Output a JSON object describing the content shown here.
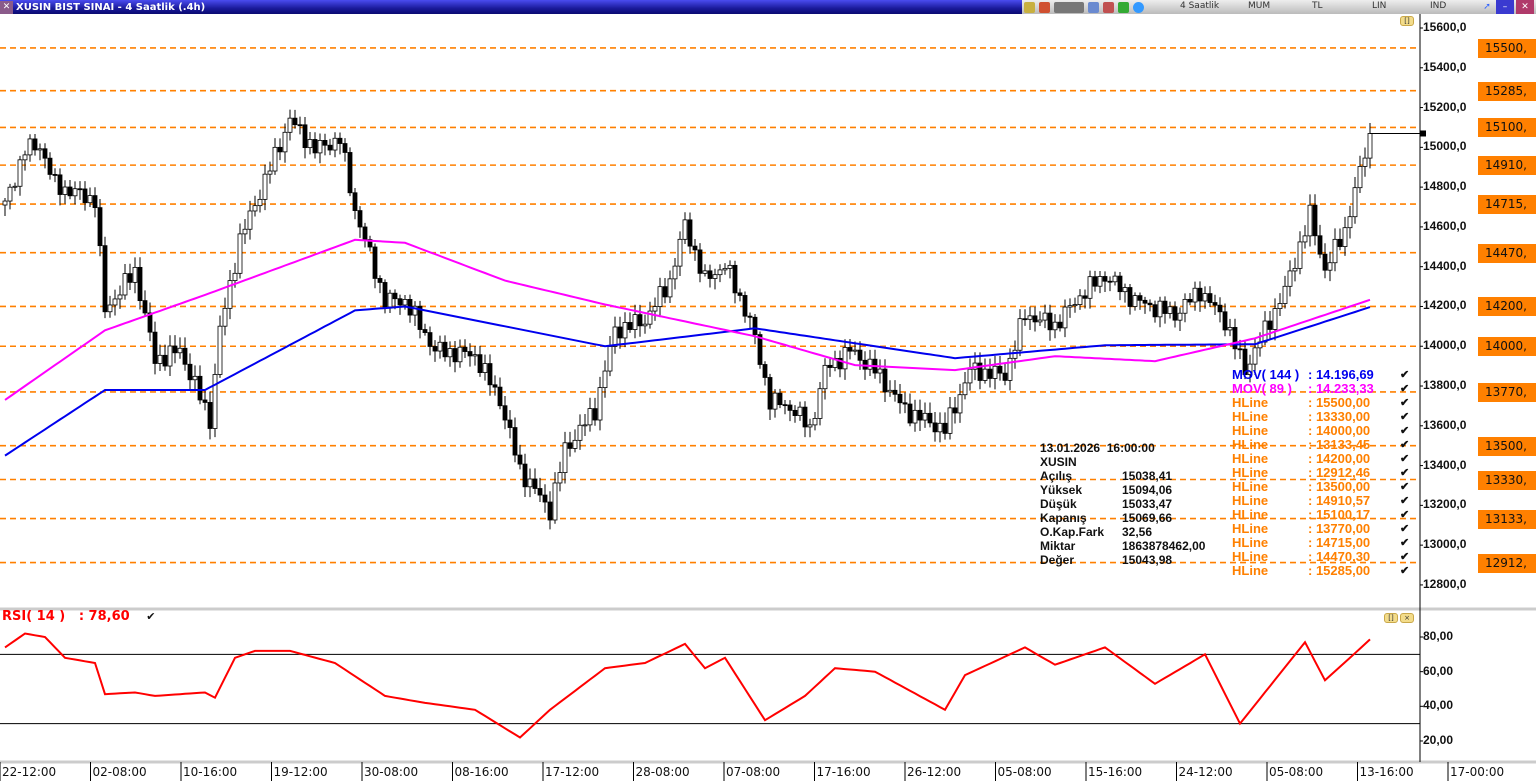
{
  "window": {
    "title": "XUSIN BIST SINAI - 4 Saatlik (.4h)",
    "toolbar": {
      "period": "4 Saatlik",
      "chart_type": "MUM",
      "currency": "TL",
      "scale": "LIN",
      "indicator": "IND"
    }
  },
  "price_axis": {
    "min": 12800,
    "max": 15600,
    "ticks": [
      "15600,0",
      "15400,0",
      "15200,0",
      "15000,0",
      "14800,0",
      "14600,0",
      "14400,0",
      "14200,0",
      "14000,0",
      "13800,0",
      "13600,0",
      "13400,0",
      "13200,0",
      "13000,0",
      "12800,0"
    ],
    "tick_values": [
      15600,
      15400,
      15200,
      15000,
      14800,
      14600,
      14400,
      14200,
      14000,
      13800,
      13600,
      13400,
      13200,
      13000,
      12800
    ]
  },
  "hlines": [
    {
      "value": 15500,
      "label": "15500,"
    },
    {
      "value": 15285,
      "label": "15285,"
    },
    {
      "value": 15100.17,
      "label": "15100,"
    },
    {
      "value": 14910.57,
      "label": "14910,"
    },
    {
      "value": 14715,
      "label": "14715,"
    },
    {
      "value": 14470.3,
      "label": "14470,"
    },
    {
      "value": 14200,
      "label": "14200,"
    },
    {
      "value": 14000,
      "label": "14000,"
    },
    {
      "value": 13770,
      "label": "13770,"
    },
    {
      "value": 13500,
      "label": "13500,"
    },
    {
      "value": 13330,
      "label": "13330,"
    },
    {
      "value": 13133.45,
      "label": "13133,"
    },
    {
      "value": 12912.46,
      "label": "12912,"
    }
  ],
  "colors": {
    "hline": "#ff8000",
    "mov144": "#0000ee",
    "mov89": "#ff00ff",
    "rsi": "#ff0000",
    "up": "#ffffff",
    "down": "#000000"
  },
  "price_path": [
    [
      0,
      14710
    ],
    [
      4,
      14987
    ],
    [
      7,
      15010
    ],
    [
      10,
      14810
    ],
    [
      18,
      14735
    ],
    [
      20,
      14180
    ],
    [
      26,
      14380
    ],
    [
      30,
      13930
    ],
    [
      35,
      13980
    ],
    [
      41,
      13630
    ],
    [
      43,
      14080
    ],
    [
      47,
      14535
    ],
    [
      52,
      14835
    ],
    [
      57,
      15140
    ],
    [
      62,
      14990
    ],
    [
      67,
      15040
    ],
    [
      70,
      14685
    ],
    [
      76,
      14230
    ],
    [
      80,
      14230
    ],
    [
      86,
      13980
    ],
    [
      94,
      13955
    ],
    [
      99,
      13730
    ],
    [
      103,
      13380
    ],
    [
      109,
      13175
    ],
    [
      112,
      13480
    ],
    [
      118,
      13680
    ],
    [
      122,
      14080
    ],
    [
      128,
      14130
    ],
    [
      133,
      14330
    ],
    [
      136,
      14610
    ],
    [
      140,
      14330
    ],
    [
      144,
      14410
    ],
    [
      149,
      14130
    ],
    [
      153,
      13730
    ],
    [
      158,
      13680
    ],
    [
      161,
      13580
    ],
    [
      164,
      13880
    ],
    [
      169,
      13980
    ],
    [
      174,
      13880
    ],
    [
      180,
      13680
    ],
    [
      188,
      13580
    ],
    [
      193,
      13880
    ],
    [
      200,
      13855
    ],
    [
      204,
      14160
    ],
    [
      210,
      14105
    ],
    [
      216,
      14280
    ],
    [
      220,
      14355
    ],
    [
      226,
      14230
    ],
    [
      234,
      14160
    ],
    [
      239,
      14280
    ],
    [
      244,
      14130
    ],
    [
      248,
      13880
    ],
    [
      251,
      14030
    ],
    [
      256,
      14280
    ],
    [
      261,
      14660
    ],
    [
      264,
      14385
    ],
    [
      268,
      14585
    ],
    [
      273,
      15069.66
    ]
  ],
  "mov144_path": [
    [
      0,
      13450
    ],
    [
      20,
      13780
    ],
    [
      40,
      13780
    ],
    [
      70,
      14180
    ],
    [
      80,
      14200
    ],
    [
      120,
      14000
    ],
    [
      150,
      14090
    ],
    [
      190,
      13940
    ],
    [
      220,
      14005
    ],
    [
      250,
      14010
    ],
    [
      273,
      14196.69
    ]
  ],
  "mov89_path": [
    [
      0,
      13730
    ],
    [
      20,
      14080
    ],
    [
      40,
      14258
    ],
    [
      70,
      14535
    ],
    [
      80,
      14520
    ],
    [
      100,
      14330
    ],
    [
      120,
      14210
    ],
    [
      150,
      14050
    ],
    [
      170,
      13905
    ],
    [
      190,
      13880
    ],
    [
      210,
      13950
    ],
    [
      230,
      13925
    ],
    [
      250,
      14040
    ],
    [
      273,
      14233.33
    ]
  ],
  "rsi_path": [
    [
      0,
      74
    ],
    [
      4,
      82
    ],
    [
      8,
      80
    ],
    [
      12,
      68
    ],
    [
      18,
      65
    ],
    [
      20,
      47
    ],
    [
      26,
      48
    ],
    [
      30,
      46
    ],
    [
      40,
      48
    ],
    [
      42,
      45
    ],
    [
      46,
      68
    ],
    [
      50,
      72
    ],
    [
      57,
      72
    ],
    [
      66,
      65
    ],
    [
      76,
      46
    ],
    [
      84,
      42
    ],
    [
      94,
      38
    ],
    [
      103,
      22
    ],
    [
      109,
      38
    ],
    [
      120,
      62
    ],
    [
      128,
      65
    ],
    [
      136,
      76
    ],
    [
      140,
      62
    ],
    [
      144,
      68
    ],
    [
      152,
      32
    ],
    [
      160,
      46
    ],
    [
      166,
      62
    ],
    [
      174,
      60
    ],
    [
      188,
      38
    ],
    [
      192,
      58
    ],
    [
      204,
      74
    ],
    [
      210,
      64
    ],
    [
      220,
      74
    ],
    [
      230,
      53
    ],
    [
      240,
      70
    ],
    [
      247,
      30
    ],
    [
      260,
      77
    ],
    [
      264,
      55
    ],
    [
      269,
      68
    ],
    [
      273,
      78.6
    ]
  ],
  "legend": [
    {
      "name": "MOV( 144 )",
      "value": ": 14.196,69",
      "color": "#0000ee"
    },
    {
      "name": "MOV( 89 )",
      "value": ": 14.233,33",
      "color": "#ff00ff"
    },
    {
      "name": "HLine",
      "value": ": 15500,00",
      "color": "#ff8000"
    },
    {
      "name": "HLine",
      "value": ": 13330,00",
      "color": "#ff8000"
    },
    {
      "name": "HLine",
      "value": ": 14000,00",
      "color": "#ff8000"
    },
    {
      "name": "HLine",
      "value": ": 13133,45",
      "color": "#ff8000"
    },
    {
      "name": "HLine",
      "value": ": 14200,00",
      "color": "#ff8000"
    },
    {
      "name": "HLine",
      "value": ": 12912,46",
      "color": "#ff8000"
    },
    {
      "name": "HLine",
      "value": ": 13500,00",
      "color": "#ff8000"
    },
    {
      "name": "HLine",
      "value": ": 14910,57",
      "color": "#ff8000"
    },
    {
      "name": "HLine",
      "value": ": 15100,17",
      "color": "#ff8000"
    },
    {
      "name": "HLine",
      "value": ": 13770,00",
      "color": "#ff8000"
    },
    {
      "name": "HLine",
      "value": ": 14715,00",
      "color": "#ff8000"
    },
    {
      "name": "HLine",
      "value": ": 14470,30",
      "color": "#ff8000"
    },
    {
      "name": "HLine",
      "value": ": 15285,00",
      "color": "#ff8000"
    }
  ],
  "check_glyph": "✔",
  "info": {
    "datetime": "13.01.2026  16:00:00",
    "symbol": "XUSIN",
    "rows": [
      {
        "k": "Açılış",
        "v": "15038,41"
      },
      {
        "k": "Yüksek",
        "v": "15094,06"
      },
      {
        "k": "Düşük",
        "v": "15033,47"
      },
      {
        "k": "Kapanış",
        "v": "15069,66"
      },
      {
        "k": "O.Kap.Fark",
        "v": "32,56"
      },
      {
        "k": "Miktar",
        "v": "1863878462,00"
      },
      {
        "k": "Değer",
        "v": "15043,98"
      }
    ]
  },
  "rsi": {
    "label": "RSI( 14 )",
    "value": ": 78,60",
    "ticks": [
      "80,00",
      "60,00",
      "40,00",
      "20,00"
    ],
    "tick_values": [
      80,
      60,
      40,
      20
    ],
    "levels": [
      70,
      30
    ]
  },
  "x_axis": [
    "22-12:00",
    "02-08:00",
    "10-16:00",
    "19-12:00",
    "30-08:00",
    "08-16:00",
    "17-12:00",
    "28-08:00",
    "07-08:00",
    "17-16:00",
    "26-12:00",
    "05-08:00",
    "15-16:00",
    "24-12:00",
    "05-08:00",
    "13-16:00",
    "17-00:00"
  ]
}
